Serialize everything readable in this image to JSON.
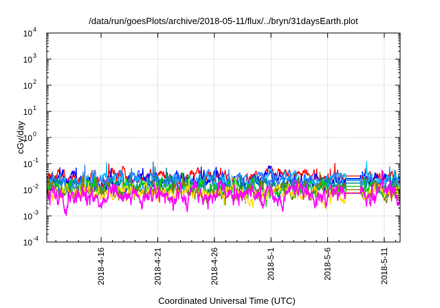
{
  "chart_data": {
    "type": "line",
    "title": "/data/run/goesPlots/archive/2018-05-11/flux/../bryn/31daysEarth.plot",
    "xlabel": "Coordinated Universal Time (UTC)",
    "ylabel": "cGy/day",
    "y_scale": "log",
    "ylim_exponents": [
      -4,
      4
    ],
    "y_tick_base": "10",
    "y_tick_exponents": [
      "4",
      "3",
      "2",
      "1",
      "0",
      "-1",
      "-2",
      "-3",
      "-4"
    ],
    "x_start": "2018-04-11",
    "xlim_days": [
      0.2,
      31.4
    ],
    "x_ticks": [
      {
        "label": "2018-4-16",
        "day": 5
      },
      {
        "label": "2018-4-21",
        "day": 10
      },
      {
        "label": "2018-4-26",
        "day": 15
      },
      {
        "label": "2018-5-1",
        "day": 20
      },
      {
        "label": "2018-5-6",
        "day": 25
      },
      {
        "label": "2018-5-11",
        "day": 30
      }
    ],
    "grid": true,
    "data_gap_days": [
      26.6,
      27.9
    ],
    "series": [
      {
        "color": "#ff0000",
        "base": 0.03,
        "spread": 0.3,
        "seed": 3
      },
      {
        "color": "#0000ff",
        "base": 0.024,
        "spread": 0.35,
        "seed": 7
      },
      {
        "color": "#00bfff",
        "base": 0.022,
        "spread": 0.3,
        "seed": 11
      },
      {
        "color": "#2f7fff",
        "base": 0.02,
        "spread": 0.35,
        "seed": 13
      },
      {
        "color": "#008b8b",
        "base": 0.016,
        "spread": 0.3,
        "seed": 17
      },
      {
        "color": "#00cc00",
        "base": 0.012,
        "spread": 0.3,
        "seed": 19
      },
      {
        "color": "#808000",
        "base": 0.009,
        "spread": 0.3,
        "seed": 23
      },
      {
        "color": "#ffd700",
        "base": 0.007,
        "spread": 0.3,
        "seed": 29
      },
      {
        "color": "#ff00ff",
        "base": 0.0065,
        "spread": 0.45,
        "seed": 31
      }
    ]
  }
}
